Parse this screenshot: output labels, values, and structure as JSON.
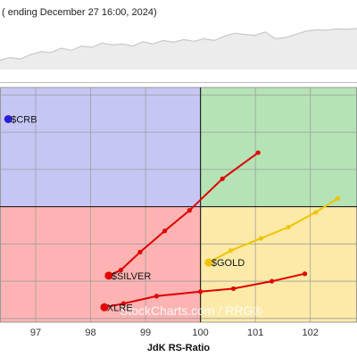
{
  "header": {
    "text": "( ending December 27 16:00, 2024)"
  },
  "watermark": {
    "text": "StockCharts.com / RRG®"
  },
  "colors": {
    "lagging": "#ffb3b3",
    "weakening": "#fdeaa8",
    "leading": "#b5e3b5",
    "improving": "#c6c6f5",
    "grid": "#9e9e9e",
    "center_line": "#222222"
  },
  "chart_data": {
    "type": "scatter",
    "title": "",
    "xlabel": "JdK RS-Ratio",
    "ylabel": "",
    "xlim": [
      96.35,
      102.85
    ],
    "ylim": [
      96.9,
      103.2
    ],
    "x_ticks": [
      97,
      98,
      99,
      100,
      101,
      102
    ],
    "center": [
      100,
      100
    ],
    "series": [
      {
        "name": "$CRB",
        "color": "#2a1fd6",
        "points": [
          [
            96.5,
            102.35
          ]
        ]
      },
      {
        "name": "$SILVER",
        "color": "#e00000",
        "points": [
          [
            98.33,
            98.15
          ],
          [
            98.55,
            98.3
          ],
          [
            98.9,
            98.78
          ],
          [
            99.35,
            99.35
          ],
          [
            99.8,
            99.9
          ],
          [
            100.4,
            100.75
          ],
          [
            101.05,
            101.45
          ]
        ]
      },
      {
        "name": "$GOLD",
        "color": "#f0c400",
        "points": [
          [
            100.15,
            98.5
          ],
          [
            100.55,
            98.82
          ],
          [
            101.1,
            99.15
          ],
          [
            101.6,
            99.45
          ],
          [
            102.1,
            99.85
          ],
          [
            102.5,
            100.22
          ]
        ]
      },
      {
        "name": "XLRE",
        "color": "#e00000",
        "points": [
          [
            98.25,
            97.3
          ],
          [
            98.6,
            97.4
          ],
          [
            99.2,
            97.6
          ],
          [
            100,
            97.72
          ],
          [
            100.6,
            97.8
          ],
          [
            101.3,
            98.0
          ],
          [
            101.9,
            98.2
          ]
        ]
      }
    ],
    "benchmark_line": {
      "type": "line",
      "values": [
        0.22,
        0.28,
        0.25,
        0.35,
        0.42,
        0.4,
        0.5,
        0.45,
        0.55,
        0.52,
        0.62,
        0.58,
        0.6,
        0.55,
        0.65,
        0.6,
        0.68,
        0.64,
        0.7,
        0.66,
        0.72,
        0.68,
        0.78,
        0.85,
        0.82,
        0.8,
        0.88,
        0.72,
        0.75,
        0.82,
        0.9,
        0.93,
        0.92,
        0.95,
        0.94,
        0.96
      ]
    }
  }
}
